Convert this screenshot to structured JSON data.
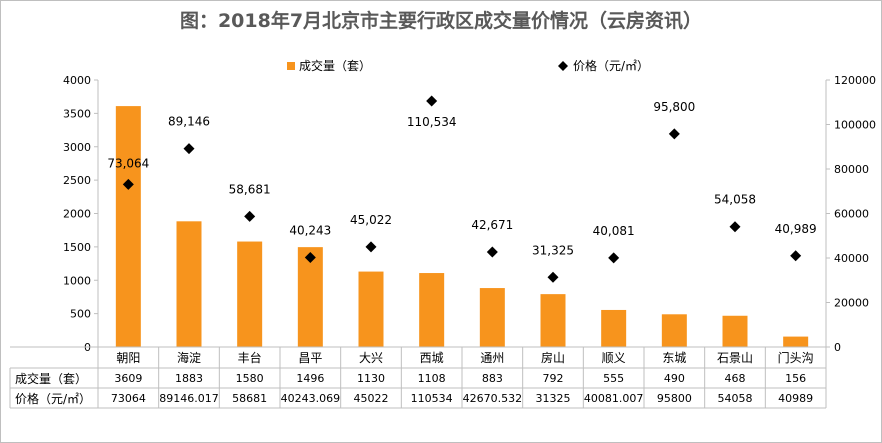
{
  "chart_data": {
    "type": "bar+scatter",
    "title": "图：2018年7月北京市主要行政区成交量价情况（云房资讯）",
    "categories": [
      "朝阳",
      "海淀",
      "丰台",
      "昌平",
      "大兴",
      "西城",
      "通州",
      "房山",
      "顺义",
      "东城",
      "石景山",
      "门头沟"
    ],
    "series": [
      {
        "name": "成交量（套）",
        "type": "bar",
        "axis": "left",
        "color": "#F7941D",
        "values": [
          3609,
          1883,
          1580,
          1496,
          1130,
          1108,
          883,
          792,
          555,
          490,
          468,
          156
        ],
        "table_values": [
          "3609",
          "1883",
          "1580",
          "1496",
          "1130",
          "1108",
          "883",
          "792",
          "555",
          "490",
          "468",
          "156"
        ]
      },
      {
        "name": "价格（元/㎡）",
        "type": "scatter",
        "axis": "right",
        "color": "#000000",
        "values": [
          73064,
          89146.017,
          58681,
          40243.069,
          45022,
          110534,
          42670.532,
          31325,
          40081.007,
          95800,
          54058,
          40989
        ],
        "data_labels": [
          "73,064",
          "89,146",
          "58,681",
          "40,243",
          "45,022",
          "110,534",
          "42,671",
          "31,325",
          "40,081",
          "95,800",
          "54,058",
          "40,989"
        ],
        "table_values": [
          "73064",
          "89146.017",
          "58681",
          "40243.069",
          "45022",
          "110534",
          "42670.532",
          "31325",
          "40081.007",
          "95800",
          "54058",
          "40989"
        ]
      }
    ],
    "ylim_left": [
      0,
      4000
    ],
    "yticks_left": [
      "0",
      "500",
      "1000",
      "1500",
      "2000",
      "2500",
      "3000",
      "3500",
      "4000"
    ],
    "ylim_right": [
      0,
      120000
    ],
    "yticks_right": [
      "0",
      "20000",
      "40000",
      "60000",
      "80000",
      "100000",
      "120000"
    ],
    "legend_position": "top-center",
    "data_table": true
  }
}
